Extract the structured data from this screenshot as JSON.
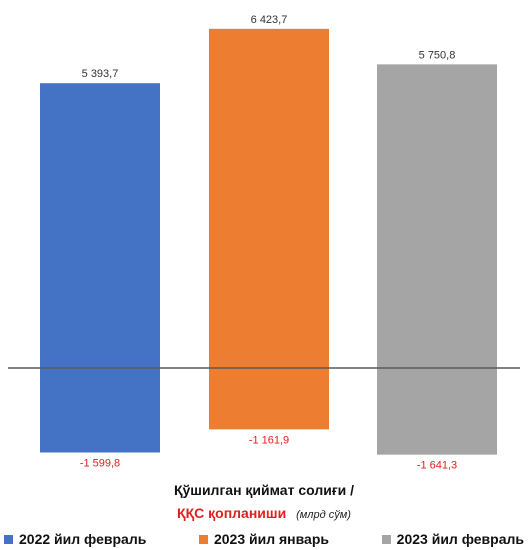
{
  "chart_data": {
    "type": "bar",
    "series": [
      {
        "name": "2022 йил февраль",
        "positive": 5393.7,
        "negative": -1599.8,
        "positive_label": "5 393,7",
        "negative_label": "-1 599,8",
        "color": "#4472c4"
      },
      {
        "name": "2023 йил январь",
        "positive": 6423.7,
        "negative": -1161.9,
        "positive_label": "6 423,7",
        "negative_label": "-1 161,9",
        "color": "#ed7d31"
      },
      {
        "name": "2023 йил февраль",
        "positive": 5750.8,
        "negative": -1641.3,
        "positive_label": "5 750,8",
        "negative_label": "-1 641,3",
        "color": "#a5a5a5"
      }
    ],
    "ylim": [
      -1700,
      6900
    ],
    "grid": false,
    "legend_position": "bottom"
  },
  "caption": {
    "line1": "Қўшилган қиймат солиғи /",
    "line2": "ҚҚС қопланиши",
    "unit": "(млрд сўм)"
  },
  "colors": {
    "positive_label": "#333333",
    "negative_label": "#e0201e",
    "axis": "#595959"
  }
}
